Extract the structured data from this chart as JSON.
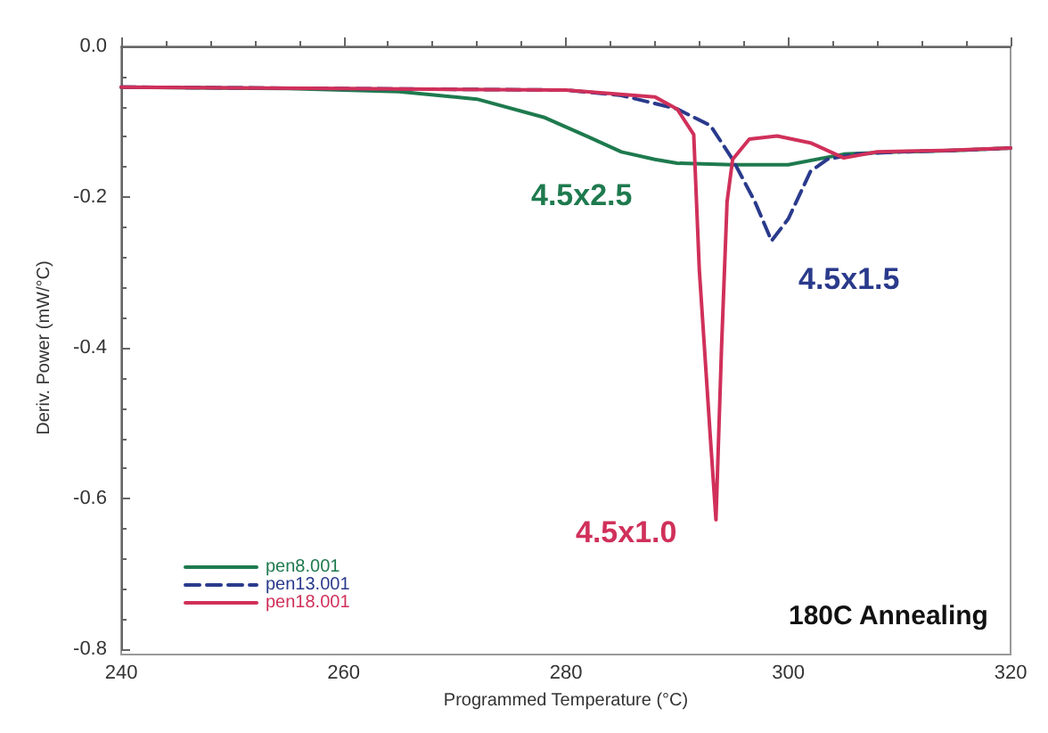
{
  "chart_data": {
    "type": "line",
    "xlabel": "Programmed Temperature (°C)",
    "ylabel": "Deriv. Power (mW/°C)",
    "xlim": [
      240,
      320
    ],
    "xticks": [
      240,
      260,
      280,
      300,
      320
    ],
    "ylim": [
      -0.8,
      0
    ],
    "yticks": [
      {
        "value": 0,
        "label": "0.0"
      },
      -0.2,
      -0.4,
      -0.6,
      -0.8
    ],
    "grid": false,
    "legend": "bottom left",
    "marker": "none",
    "series": [
      {
        "name": "pen8.001",
        "color": "#1e7a4e",
        "line_style": "solid",
        "x": [
          240,
          255,
          265,
          272,
          278,
          282,
          285,
          288,
          290,
          295,
          300,
          305,
          310,
          315,
          320
        ],
        "values": [
          -0.054,
          -0.056,
          -0.06,
          -0.07,
          -0.094,
          -0.12,
          -0.14,
          -0.15,
          -0.155,
          -0.157,
          -0.157,
          -0.143,
          -0.14,
          -0.138,
          -0.135
        ]
      },
      {
        "name": "pen13.001",
        "color": "#2a3a8c",
        "line_style": "dashed",
        "x": [
          240,
          260,
          280,
          285,
          290,
          293,
          295,
          297,
          298.5,
          300,
          302,
          303.5,
          306,
          310,
          315,
          320
        ],
        "values": [
          -0.054,
          -0.056,
          -0.058,
          -0.065,
          -0.083,
          -0.105,
          -0.15,
          -0.206,
          -0.258,
          -0.229,
          -0.166,
          -0.15,
          -0.143,
          -0.14,
          -0.138,
          -0.135
        ]
      },
      {
        "name": "pen18.001",
        "color": "#d0305a",
        "line_style": "solid",
        "x": [
          240,
          260,
          280,
          288,
          290,
          291.5,
          292,
          293,
          293.5,
          294,
          294.5,
          295,
          296.5,
          299,
          302,
          305,
          308,
          314,
          320
        ],
        "values": [
          -0.054,
          -0.056,
          -0.058,
          -0.067,
          -0.083,
          -0.117,
          -0.296,
          -0.52,
          -0.628,
          -0.4,
          -0.206,
          -0.15,
          -0.123,
          -0.119,
          -0.128,
          -0.148,
          -0.14,
          -0.138,
          -0.135
        ]
      }
    ],
    "annotations": [
      "4.5x2.5",
      "4.5x1.5",
      "4.5x1.0",
      "180C Annealing"
    ]
  }
}
